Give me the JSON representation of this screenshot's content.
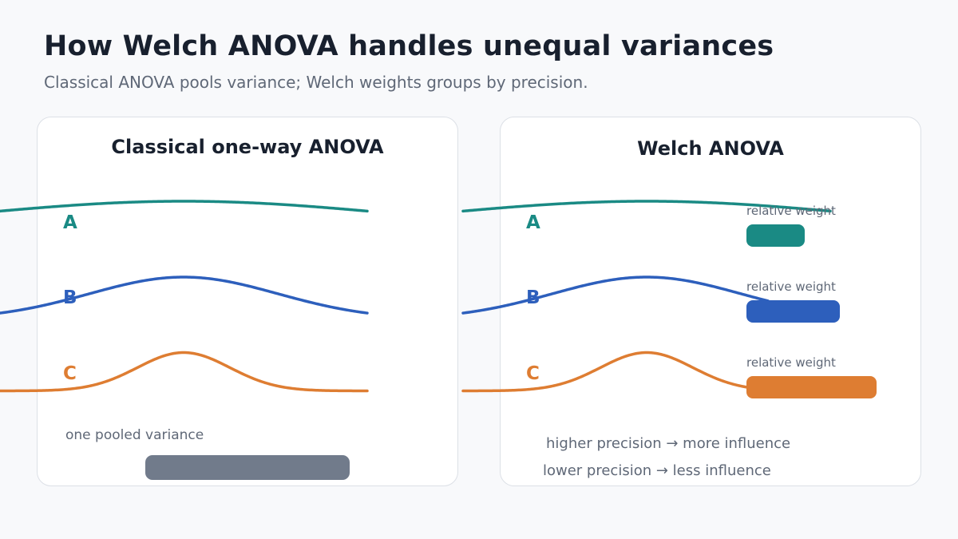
{
  "header": {
    "title": "How Welch ANOVA handles unequal variances",
    "subtitle": "Classical ANOVA pools variance; Welch weights groups by precision."
  },
  "classical_panel": {
    "title": "Classical one-way ANOVA",
    "groups": [
      {
        "label": "A"
      },
      {
        "label": "B"
      },
      {
        "label": "C"
      }
    ],
    "pooled_caption": "one pooled variance"
  },
  "welch_panel": {
    "title": "Welch ANOVA",
    "groups": [
      {
        "label": "A",
        "weight_caption": "relative weight",
        "relative_weight": 0.45
      },
      {
        "label": "B",
        "weight_caption": "relative weight",
        "relative_weight": 0.72
      },
      {
        "label": "C",
        "weight_caption": "relative weight",
        "relative_weight": 1.0
      }
    ],
    "notes": [
      "higher precision → more influence",
      "lower precision → less influence"
    ]
  },
  "colors": {
    "group_a": "#1a8a84",
    "group_b": "#2d5fbc",
    "group_c": "#de7d32",
    "pooled": "#717b8b"
  }
}
